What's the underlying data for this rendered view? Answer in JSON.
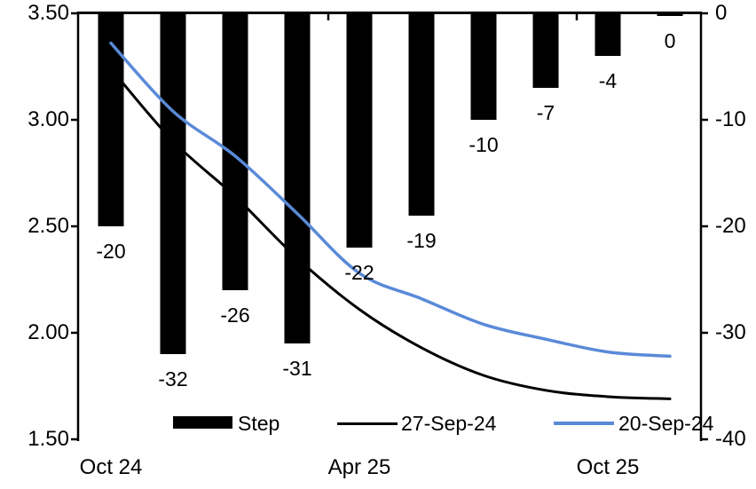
{
  "chart_data": {
    "type": "combo-bar-line",
    "title": "",
    "x_axis": {
      "num_slots": 10,
      "labels": [
        {
          "text": "Oct 24",
          "slot": 0
        },
        {
          "text": "Apr 25",
          "slot": 4
        },
        {
          "text": "Oct 25",
          "slot": 8
        }
      ]
    },
    "left_axis": {
      "min": 1.5,
      "max": 3.5,
      "ticks": [
        "3.50",
        "3.00",
        "2.50",
        "2.00",
        "1.50"
      ]
    },
    "right_axis": {
      "min": -40,
      "max": 0,
      "ticks": [
        "0",
        "-10",
        "-20",
        "-30",
        "-40"
      ]
    },
    "bar_series": {
      "name": "Step",
      "axis": "right",
      "color": "#000000",
      "values": [
        -20,
        -32,
        -26,
        -31,
        -22,
        -19,
        -10,
        -7,
        -4,
        0
      ],
      "data_labels": [
        "-20",
        "-32",
        "-26",
        "-31",
        "-22",
        "-19",
        "-10",
        "-7",
        "-4",
        "0"
      ]
    },
    "line_series": [
      {
        "name": "27-Sep-24",
        "axis": "left",
        "color": "#000000",
        "stroke_width": 3,
        "values": [
          3.24,
          2.9,
          2.64,
          2.35,
          2.11,
          1.93,
          1.8,
          1.73,
          1.7,
          1.69
        ]
      },
      {
        "name": "20-Sep-24",
        "axis": "left",
        "color": "#5A8AD8",
        "stroke_width": 3.5,
        "values": [
          3.36,
          3.04,
          2.83,
          2.56,
          2.28,
          2.16,
          2.04,
          1.97,
          1.91,
          1.89
        ]
      }
    ],
    "legend": [
      {
        "label": "Step",
        "swatch": "bar",
        "color": "#000000"
      },
      {
        "label": "27-Sep-24",
        "swatch": "line",
        "color": "#000000"
      },
      {
        "label": "20-Sep-24",
        "swatch": "line",
        "color": "#5A8AD8"
      }
    ]
  }
}
